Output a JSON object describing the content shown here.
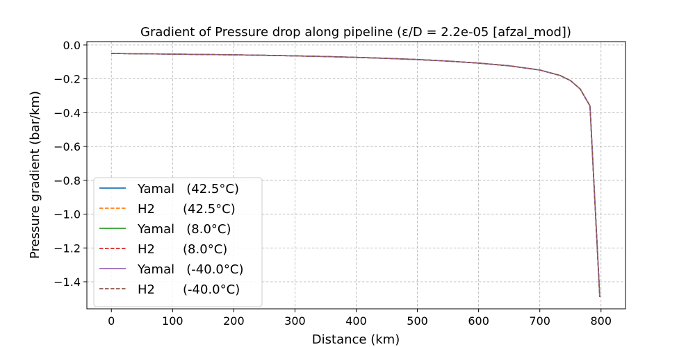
{
  "chart_data": {
    "type": "line",
    "title": "Gradient of Pressure drop along pipeline (ε/D = 2.2e-05 [afzal_mod])",
    "xlabel": "Distance (km)",
    "ylabel": "Pressure gradient (bar/km)",
    "xlim": [
      -40,
      840
    ],
    "ylim": [
      -1.56,
      0.02
    ],
    "xticks": [
      0,
      100,
      200,
      300,
      400,
      500,
      600,
      700,
      800
    ],
    "yticks": [
      0.0,
      -0.2,
      -0.4,
      -0.6,
      -0.8,
      -1.0,
      -1.2,
      -1.4
    ],
    "xtick_labels": [
      "0",
      "100",
      "200",
      "300",
      "400",
      "500",
      "600",
      "700",
      "800"
    ],
    "ytick_labels": [
      "0.0",
      "−0.2",
      "−0.4",
      "−0.6",
      "−0.8",
      "−1.0",
      "−1.2",
      "−1.4"
    ],
    "grid": true,
    "legend_position": "lower-left",
    "x": [
      0,
      50,
      100,
      150,
      200,
      250,
      300,
      350,
      400,
      450,
      500,
      550,
      600,
      650,
      700,
      733,
      750,
      766,
      782,
      798
    ],
    "series": [
      {
        "name": "Yamal   (42.5°C)",
        "color": "#1f77b4",
        "dash": "solid",
        "values": [
          -0.05,
          -0.052,
          -0.054,
          -0.056,
          -0.058,
          -0.061,
          -0.064,
          -0.068,
          -0.073,
          -0.079,
          -0.086,
          -0.095,
          -0.107,
          -0.123,
          -0.148,
          -0.18,
          -0.21,
          -0.26,
          -0.36,
          -1.49
        ]
      },
      {
        "name": "H2       (42.5°C)",
        "color": "#ff7f0e",
        "dash": "dashed",
        "values": [
          -0.05,
          -0.052,
          -0.054,
          -0.056,
          -0.058,
          -0.061,
          -0.064,
          -0.068,
          -0.073,
          -0.079,
          -0.086,
          -0.095,
          -0.107,
          -0.123,
          -0.148,
          -0.18,
          -0.21,
          -0.26,
          -0.36,
          -1.49
        ]
      },
      {
        "name": "Yamal   (8.0°C)",
        "color": "#2ca02c",
        "dash": "solid",
        "values": [
          -0.05,
          -0.052,
          -0.054,
          -0.056,
          -0.058,
          -0.061,
          -0.064,
          -0.068,
          -0.073,
          -0.079,
          -0.086,
          -0.095,
          -0.107,
          -0.123,
          -0.148,
          -0.18,
          -0.21,
          -0.26,
          -0.36,
          -1.49
        ]
      },
      {
        "name": "H2       (8.0°C)",
        "color": "#d62728",
        "dash": "dashed",
        "values": [
          -0.05,
          -0.052,
          -0.054,
          -0.056,
          -0.058,
          -0.061,
          -0.064,
          -0.068,
          -0.073,
          -0.079,
          -0.086,
          -0.095,
          -0.107,
          -0.123,
          -0.148,
          -0.18,
          -0.21,
          -0.26,
          -0.36,
          -1.49
        ]
      },
      {
        "name": "Yamal   (-40.0°C)",
        "color": "#9467bd",
        "dash": "solid",
        "values": [
          -0.05,
          -0.052,
          -0.054,
          -0.056,
          -0.058,
          -0.061,
          -0.064,
          -0.068,
          -0.073,
          -0.079,
          -0.086,
          -0.095,
          -0.107,
          -0.123,
          -0.148,
          -0.18,
          -0.21,
          -0.26,
          -0.36,
          -1.49
        ]
      },
      {
        "name": "H2       (-40.0°C)",
        "color": "#8c564b",
        "dash": "dashed",
        "values": [
          -0.05,
          -0.052,
          -0.054,
          -0.056,
          -0.058,
          -0.061,
          -0.064,
          -0.068,
          -0.073,
          -0.079,
          -0.086,
          -0.095,
          -0.107,
          -0.123,
          -0.148,
          -0.18,
          -0.21,
          -0.26,
          -0.36,
          -1.49
        ]
      }
    ]
  }
}
